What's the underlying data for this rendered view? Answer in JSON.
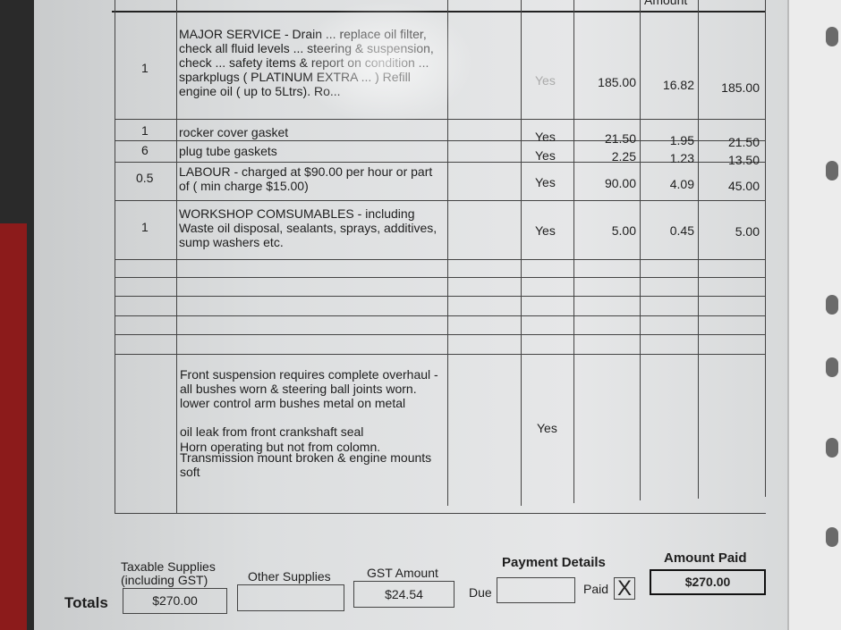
{
  "table": {
    "header_partial": "Amount",
    "rows": [
      {
        "qty": "1",
        "description": "MAJOR SERVICE - Drain ... replace oil filter, check all fluid levels ... steering & suspension, check ... safety items & report on condition ... sparkplugs ( PLATINUM EXTRA ... ) Refill engine oil ( up to 5Ltrs). Ro...",
        "gst": "Yes",
        "price": "185.00",
        "gst_amount": "16.82",
        "total": "185.00"
      },
      {
        "qty": "1",
        "description": "rocker cover gasket",
        "gst": "Yes",
        "price": "21.50",
        "gst_amount": "1.95",
        "total": "21.50"
      },
      {
        "qty": "6",
        "description": "plug tube gaskets",
        "gst": "Yes",
        "price": "2.25",
        "gst_amount": "1.23",
        "total": "13.50"
      },
      {
        "qty": "0.5",
        "description": "LABOUR - charged at $90.00 per hour or part of ( min charge $15.00)",
        "gst": "Yes",
        "price": "90.00",
        "gst_amount": "4.09",
        "total": "45.00"
      },
      {
        "qty": "1",
        "description": "WORKSHOP COMSUMABLES - including Waste oil disposal, sealants, sprays, additives, sump washers etc.",
        "gst": "Yes",
        "price": "5.00",
        "gst_amount": "0.45",
        "total": "5.00"
      }
    ],
    "notes": {
      "line1": "Front suspension requires complete overhaul - all bushes worn & steering ball joints worn. lower control arm bushes metal on metal",
      "line2": "oil leak from front crankshaft seal",
      "line3": "Horn operating but not from colomn.",
      "line4": "Transmission mount broken & engine mounts soft",
      "gst": "Yes"
    }
  },
  "totals": {
    "label": "Totals",
    "taxable_label": "Taxable Supplies (including GST)",
    "taxable_value": "$270.00",
    "other_label": "Other Supplies",
    "other_value": "",
    "gst_label": "GST Amount",
    "gst_value": "$24.54",
    "payment_label": "Payment Details",
    "due_label": "Due",
    "due_value": "",
    "paid_label": "Paid",
    "paid_mark": "X",
    "amount_paid_label": "Amount Paid",
    "amount_paid_value": "$270.00"
  }
}
